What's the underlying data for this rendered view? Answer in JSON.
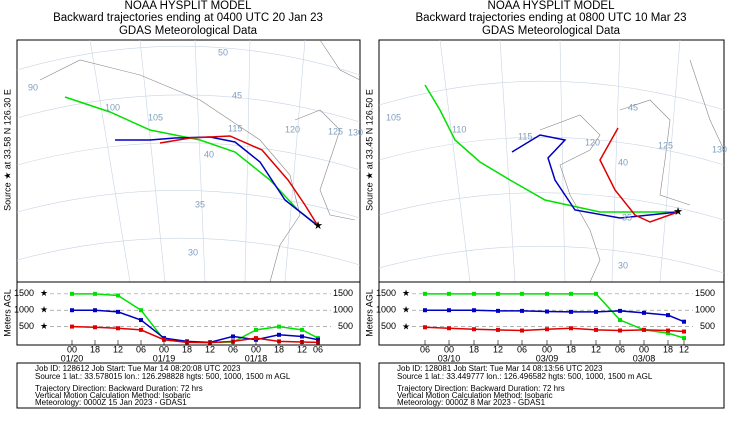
{
  "panels": [
    {
      "title": "NOAA HYSPLIT MODEL",
      "subtitle": "Backward trajectories ending at 0400 UTC 20 Jan 23",
      "meteo": "GDAS Meteorological Data",
      "source_label": "Source ★ at  33.58 N  126.30 E",
      "map_labels": [
        "90",
        "100",
        "105",
        "115",
        "120",
        "125",
        "130",
        "50",
        "45",
        "40",
        "35",
        "30"
      ],
      "heights": {
        "y_label": "Meters AGL",
        "ylim": [
          0,
          1800
        ],
        "yticks": [
          500,
          1000,
          1500
        ],
        "x_labels": [
          "00",
          "18",
          "12",
          "06",
          "00",
          "18",
          "12",
          "06",
          "00",
          "18",
          "12",
          "06"
        ],
        "date_labels": [
          "01/20",
          null,
          null,
          null,
          "01/19",
          null,
          null,
          null,
          "01/18",
          null,
          null,
          null
        ],
        "series": [
          {
            "color": "#00e000",
            "values": [
              1500,
              1500,
              1450,
              1000,
              100,
              30,
              20,
              30,
              400,
              500,
              400,
              150
            ]
          },
          {
            "color": "#0000c0",
            "values": [
              1000,
              1000,
              950,
              700,
              150,
              50,
              20,
              200,
              100,
              250,
              200,
              100
            ]
          },
          {
            "color": "#e00000",
            "values": [
              500,
              480,
              450,
              400,
              100,
              20,
              10,
              50,
              150,
              50,
              30,
              20
            ]
          }
        ]
      },
      "footer": [
        "Job ID: 128612             Job Start: Tue Mar 14 08:20:08 UTC 2023",
        "Source 1 lat.: 33.578015   lon.: 126.298828   hgts: 500, 1000, 1500 m AGL",
        "Trajectory Direction: Backward      Duration: 72 hrs",
        "Vertical Motion Calculation Method:      Isobaric",
        "Meteorology: 0000Z 15 Jan 2023 - GDAS1"
      ]
    },
    {
      "title": "NOAA HYSPLIT MODEL",
      "subtitle": "Backward trajectories ending at 0800 UTC 10 Mar 23",
      "meteo": "GDAS Meteorological Data",
      "source_label": "Source ★ at  33.45 N  126.50 E",
      "map_labels": [
        "105",
        "110",
        "115",
        "120",
        "125",
        "130",
        "45",
        "40",
        "35",
        "30"
      ],
      "heights": {
        "y_label": "Meters AGL",
        "ylim": [
          0,
          1800
        ],
        "yticks": [
          500,
          1000,
          1500
        ],
        "x_labels": [
          "06",
          "00",
          "18",
          "12",
          "06",
          "00",
          "18",
          "12",
          "06",
          "00",
          "18",
          "12"
        ],
        "date_labels": [
          null,
          "03/10",
          null,
          null,
          null,
          "03/09",
          null,
          null,
          null,
          "03/08",
          null,
          null
        ],
        "series": [
          {
            "color": "#00e000",
            "values": [
              1500,
              1500,
              1500,
              1500,
              1500,
              1500,
              1500,
              1500,
              700,
              400,
              300,
              150
            ]
          },
          {
            "color": "#0000c0",
            "values": [
              1000,
              1000,
              1000,
              980,
              980,
              960,
              950,
              950,
              980,
              920,
              850,
              650
            ]
          },
          {
            "color": "#e00000",
            "values": [
              480,
              450,
              420,
              400,
              380,
              420,
              450,
              400,
              380,
              400,
              380,
              350
            ]
          }
        ]
      },
      "footer": [
        "Job ID: 128081             Job Start: Tue Mar 14 08:13:56 UTC 2023",
        "Source 1 lat.: 33.449777   lon.: 126.496582   hgts: 500, 1000, 1500 m AGL",
        "Trajectory Direction: Backward      Duration: 72 hrs",
        "Vertical Motion Calculation Method:      Isobaric",
        "Meteorology: 0000Z 8 Mar 2023 - GDAS1"
      ]
    }
  ]
}
